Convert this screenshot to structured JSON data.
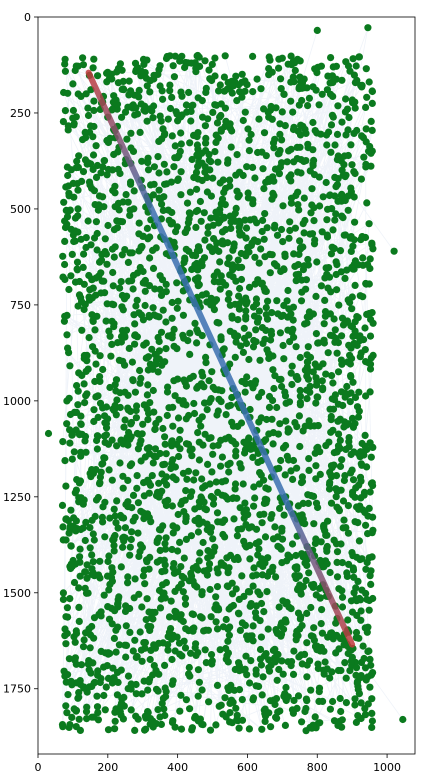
{
  "chart_data": {
    "type": "scatter",
    "title": "",
    "xlabel": "",
    "ylabel": "",
    "xlim": [
      0,
      1080
    ],
    "ylim": [
      1920,
      0
    ],
    "y_inverted": true,
    "grid": false,
    "legend": "none",
    "x_ticks": [
      0,
      200,
      400,
      600,
      800,
      1000
    ],
    "y_ticks": [
      0,
      250,
      500,
      750,
      1000,
      1250,
      1500,
      1750
    ],
    "colors": {
      "points": "#0b7a1e",
      "edges": "#4d7fc2",
      "trajectory": "#c0393b",
      "trajectory_blend": "#3a6fb0"
    },
    "point_cloud": {
      "count": 3000,
      "x_range": [
        70,
        960
      ],
      "y_range": [
        100,
        1860
      ],
      "outliers": [
        [
          30,
          1085
        ],
        [
          1020,
          610
        ],
        [
          1045,
          1830
        ],
        [
          800,
          35
        ],
        [
          945,
          28
        ]
      ]
    },
    "edge_count": 2600,
    "edge_opacity": 0.09,
    "trajectory_line": {
      "start": [
        145,
        145
      ],
      "end": [
        900,
        1635
      ]
    }
  }
}
